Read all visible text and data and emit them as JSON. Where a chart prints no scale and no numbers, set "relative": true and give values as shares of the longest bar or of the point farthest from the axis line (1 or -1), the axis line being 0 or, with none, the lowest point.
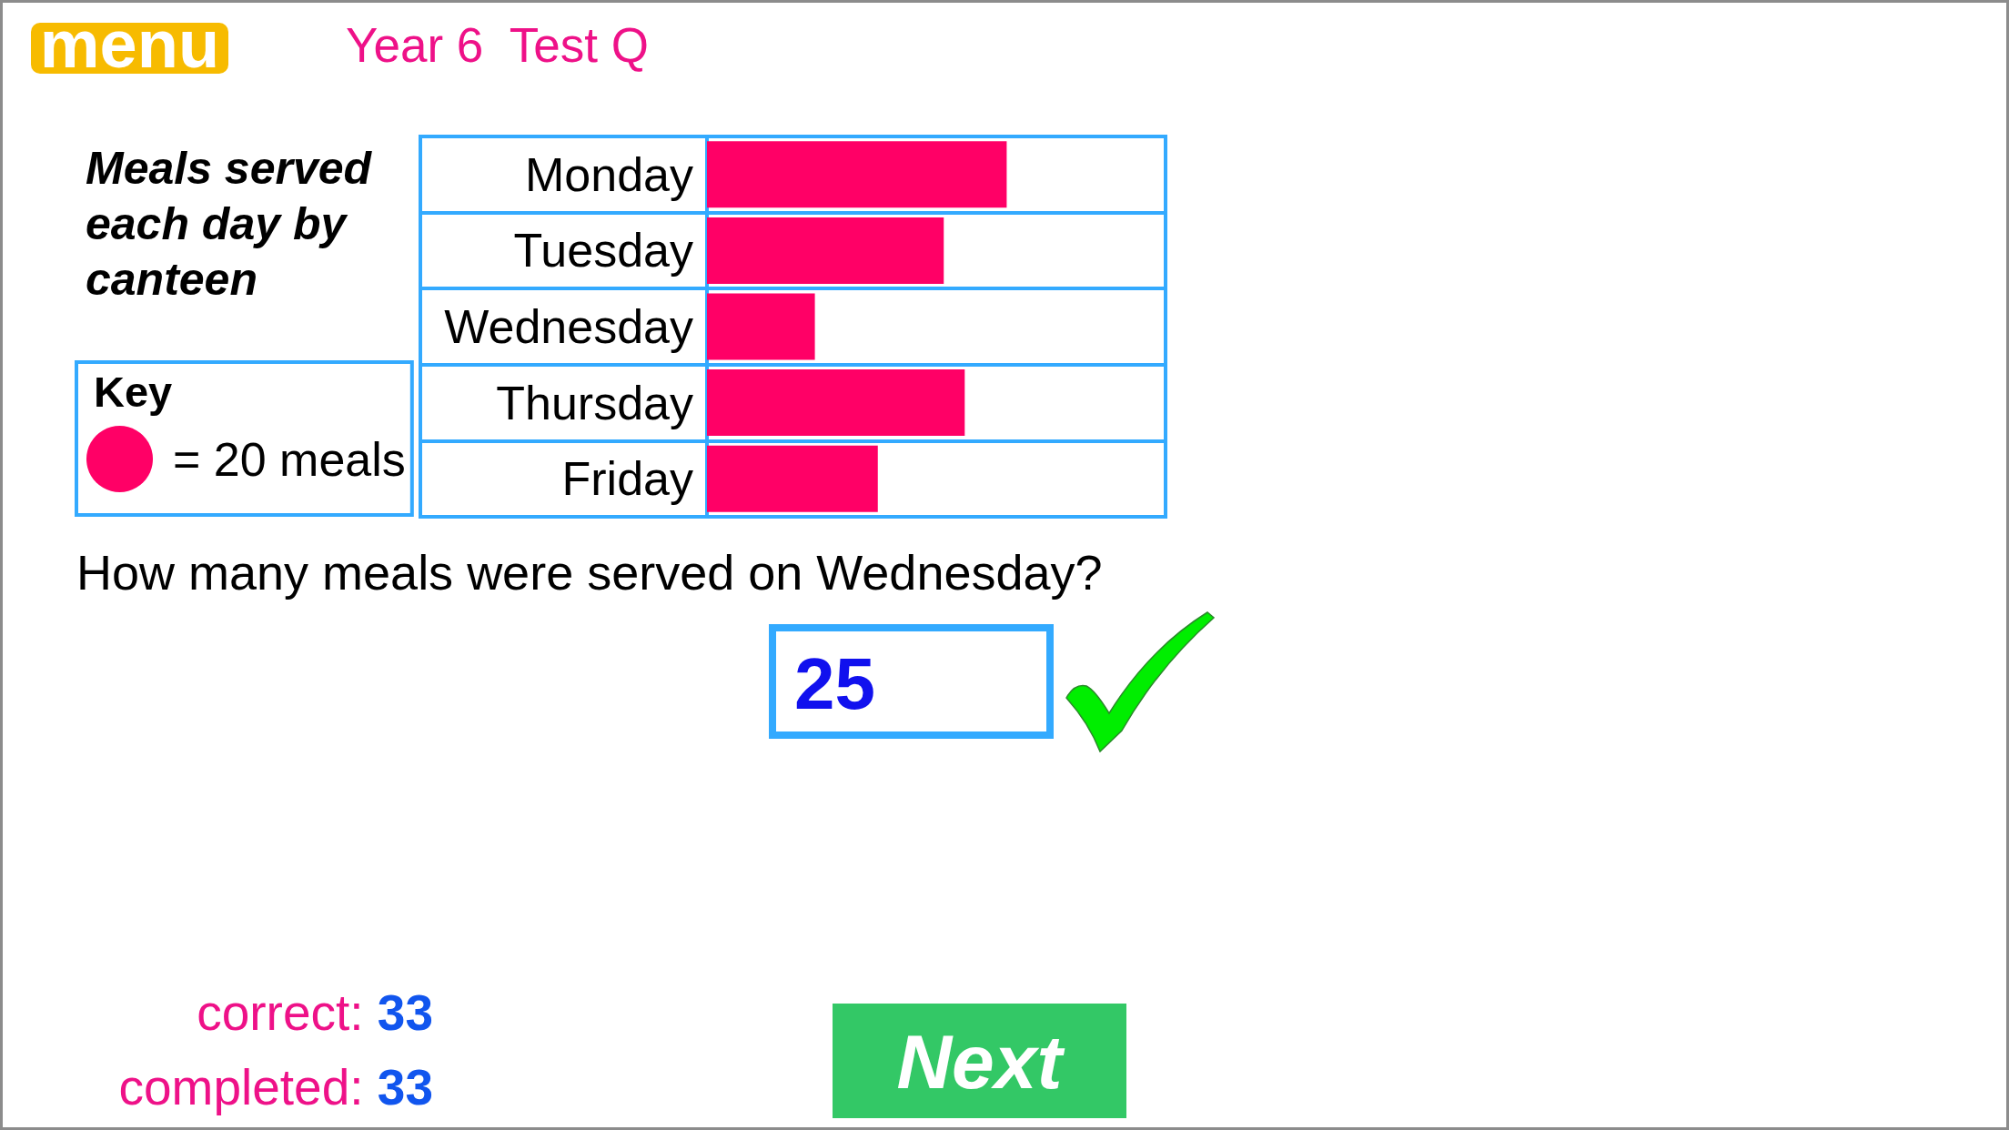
{
  "chart_data": {
    "type": "bar",
    "orientation": "horizontal",
    "relative": true,
    "title": "Meals served each day by canteen",
    "legend_title": "Key",
    "categories": [
      "Monday",
      "Tuesday",
      "Wednesday",
      "Thursday",
      "Friday"
    ],
    "series": [
      {
        "name": "= 20 meals",
        "color": "#ff0066",
        "values": [
          1,
          0.79,
          0.36,
          0.86,
          0.57
        ]
      }
    ],
    "legend": "left",
    "grid": "y",
    "annotations": [
      "menu",
      "Year 6  Test Q",
      "How many meals were served on Wednesday?",
      "25",
      "correct: 33",
      "completed: 33",
      "Next"
    ]
  }
}
